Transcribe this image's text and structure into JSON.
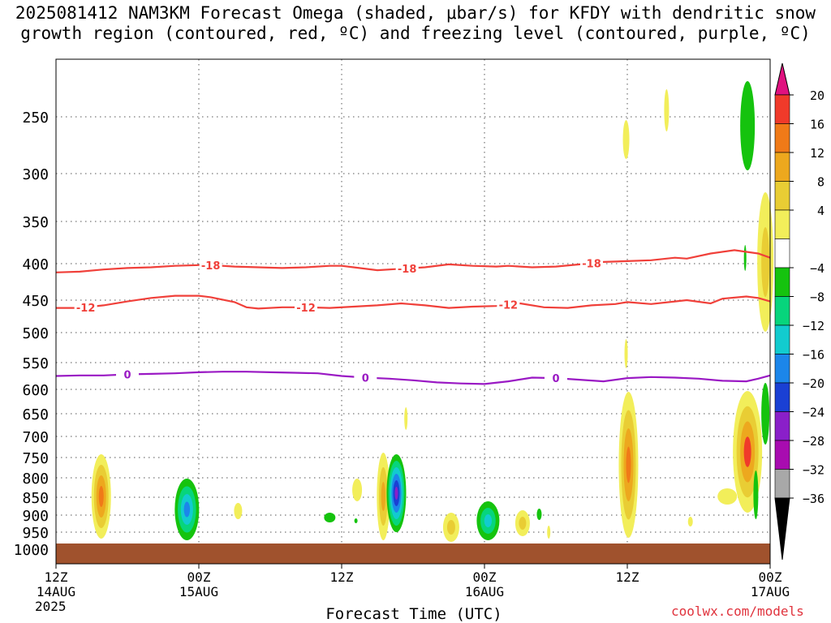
{
  "title": {
    "line1": "2025081412 NAM3KM Forecast Omega (shaded, μbar/s) for KFDY with dendritic snow",
    "line2": "growth region (contoured, red, ºC) and freezing level (contoured, purple, ºC)"
  },
  "xlabel": "Forecast Time (UTC)",
  "credit": "coolwx.com/models",
  "chart_data": {
    "type": "heatmap",
    "x_range_hours": [
      0,
      60
    ],
    "x_ticks": [
      {
        "hour": 0,
        "lines": [
          "12Z",
          "14AUG",
          "2025"
        ]
      },
      {
        "hour": 12,
        "lines": [
          "00Z",
          "15AUG"
        ]
      },
      {
        "hour": 24,
        "lines": [
          "12Z"
        ]
      },
      {
        "hour": 36,
        "lines": [
          "00Z",
          "16AUG"
        ]
      },
      {
        "hour": 48,
        "lines": [
          "12Z"
        ]
      },
      {
        "hour": 60,
        "lines": [
          "00Z",
          "17AUG"
        ]
      }
    ],
    "y_range_hpa": [
      1000,
      200
    ],
    "y_ticks": [
      250,
      300,
      350,
      400,
      450,
      500,
      550,
      600,
      650,
      700,
      750,
      800,
      850,
      900,
      950,
      1000
    ],
    "grid": true,
    "colorbar": {
      "labels": [
        "20",
        "16",
        "12",
        "8",
        "4",
        "−4",
        "−8",
        "−12",
        "−16",
        "−20",
        "−24",
        "−28",
        "−32",
        "−36"
      ],
      "colors": [
        "#e0117f",
        "#f03a2a",
        "#f07a18",
        "#eda81e",
        "#e9cd34",
        "#f2ee5a",
        "#ffffff",
        "#15c30e",
        "#07d57c",
        "#12cbcf",
        "#1c86ea",
        "#1a40d4",
        "#8a1fc9",
        "#a80cb0",
        "#a8a8a8",
        "#000000"
      ]
    },
    "contours": [
      {
        "label": "-18",
        "color": "#f0403a",
        "points": [
          [
            0,
            412
          ],
          [
            2,
            411
          ],
          [
            4,
            408
          ],
          [
            6,
            406
          ],
          [
            8,
            405
          ],
          [
            10,
            403
          ],
          [
            12,
            402
          ],
          [
            13,
            402
          ],
          [
            15,
            404
          ],
          [
            17,
            405
          ],
          [
            19,
            406
          ],
          [
            21,
            405
          ],
          [
            23,
            403
          ],
          [
            24,
            403
          ],
          [
            25,
            405
          ],
          [
            27,
            409
          ],
          [
            29,
            407
          ],
          [
            31,
            405
          ],
          [
            33,
            401
          ],
          [
            35,
            403
          ],
          [
            37,
            404
          ],
          [
            38,
            403
          ],
          [
            40,
            405
          ],
          [
            42,
            404
          ],
          [
            44,
            401
          ],
          [
            46,
            398
          ],
          [
            48,
            397
          ],
          [
            50,
            396
          ],
          [
            52,
            393
          ],
          [
            53,
            394
          ],
          [
            55,
            388
          ],
          [
            57,
            384
          ],
          [
            59,
            388
          ],
          [
            60,
            393
          ]
        ],
        "labels_at": [
          13,
          29.5,
          45
        ]
      },
      {
        "label": "-12",
        "color": "#f0403a",
        "points": [
          [
            0,
            462
          ],
          [
            2,
            462
          ],
          [
            4,
            458
          ],
          [
            6,
            452
          ],
          [
            8,
            447
          ],
          [
            10,
            444
          ],
          [
            12,
            444
          ],
          [
            13,
            446
          ],
          [
            15,
            453
          ],
          [
            16,
            461
          ],
          [
            17,
            463
          ],
          [
            19,
            461
          ],
          [
            21,
            461
          ],
          [
            23,
            462
          ],
          [
            25,
            460
          ],
          [
            27,
            458
          ],
          [
            29,
            455
          ],
          [
            31,
            458
          ],
          [
            33,
            462
          ],
          [
            35,
            460
          ],
          [
            37,
            459
          ],
          [
            39,
            455
          ],
          [
            41,
            461
          ],
          [
            43,
            462
          ],
          [
            45,
            458
          ],
          [
            47,
            456
          ],
          [
            48,
            453
          ],
          [
            50,
            456
          ],
          [
            52,
            452
          ],
          [
            53,
            450
          ],
          [
            55,
            455
          ],
          [
            56,
            448
          ],
          [
            58,
            445
          ],
          [
            59,
            447
          ],
          [
            60,
            452
          ]
        ],
        "labels_at": [
          2.5,
          21,
          38
        ]
      },
      {
        "label": "0",
        "color": "#9a19c4",
        "points": [
          [
            0,
            575
          ],
          [
            2,
            574
          ],
          [
            4,
            574
          ],
          [
            6,
            572
          ],
          [
            8,
            571
          ],
          [
            10,
            570
          ],
          [
            12,
            568
          ],
          [
            14,
            567
          ],
          [
            16,
            567
          ],
          [
            18,
            568
          ],
          [
            20,
            569
          ],
          [
            22,
            570
          ],
          [
            24,
            575
          ],
          [
            26,
            578
          ],
          [
            28,
            580
          ],
          [
            30,
            583
          ],
          [
            32,
            587
          ],
          [
            34,
            589
          ],
          [
            36,
            590
          ],
          [
            38,
            585
          ],
          [
            40,
            578
          ],
          [
            42,
            579
          ],
          [
            44,
            582
          ],
          [
            46,
            585
          ],
          [
            48,
            579
          ],
          [
            50,
            577
          ],
          [
            52,
            578
          ],
          [
            54,
            580
          ],
          [
            56,
            584
          ],
          [
            58,
            585
          ],
          [
            59,
            580
          ],
          [
            60,
            574
          ]
        ],
        "labels_at": [
          6,
          26,
          42
        ]
      }
    ]
  }
}
